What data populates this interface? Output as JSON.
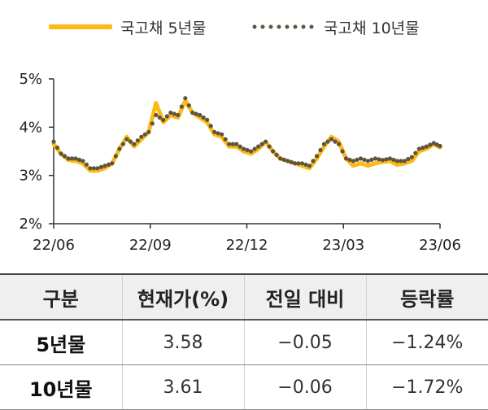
{
  "legend": {
    "series1": "국고채 5년물",
    "series2": "국고채 10년물"
  },
  "colors": {
    "series1": "#FDBA12",
    "series2": "#5E5440",
    "axis": "#333333",
    "header_bg": "#EFEFEF"
  },
  "chart_data": {
    "type": "line",
    "title": "",
    "xlabel": "",
    "ylabel": "",
    "ylim": [
      2,
      5
    ],
    "yticks": [
      "2%",
      "3%",
      "4%",
      "5%"
    ],
    "xticks": [
      "22/06",
      "22/09",
      "22/12",
      "23/03",
      "23/06"
    ],
    "xlim": [
      "2022-06-10",
      "2023-06-15"
    ],
    "grid": false,
    "legend_position": "top",
    "x": [
      "2022-06-10",
      "2022-06-17",
      "2022-06-24",
      "2022-07-01",
      "2022-07-08",
      "2022-07-15",
      "2022-07-22",
      "2022-07-29",
      "2022-08-05",
      "2022-08-12",
      "2022-08-19",
      "2022-08-26",
      "2022-09-02",
      "2022-09-09",
      "2022-09-16",
      "2022-09-23",
      "2022-09-30",
      "2022-10-07",
      "2022-10-14",
      "2022-10-21",
      "2022-10-28",
      "2022-11-04",
      "2022-11-11",
      "2022-11-18",
      "2022-11-25",
      "2022-12-02",
      "2022-12-09",
      "2022-12-16",
      "2022-12-23",
      "2022-12-30",
      "2023-01-06",
      "2023-01-13",
      "2023-01-20",
      "2023-01-27",
      "2023-02-03",
      "2023-02-10",
      "2023-02-17",
      "2023-02-24",
      "2023-03-03",
      "2023-03-10",
      "2023-03-17",
      "2023-03-24",
      "2023-03-31",
      "2023-04-07",
      "2023-04-14",
      "2023-04-21",
      "2023-04-28",
      "2023-05-05",
      "2023-05-12",
      "2023-05-19",
      "2023-05-26",
      "2023-06-02",
      "2023-06-09",
      "2023-06-15"
    ],
    "series": [
      {
        "name": "국고채 5년물",
        "values": [
          3.65,
          3.45,
          3.32,
          3.3,
          3.25,
          3.1,
          3.1,
          3.15,
          3.25,
          3.55,
          3.8,
          3.6,
          3.75,
          3.9,
          4.5,
          4.1,
          4.25,
          4.2,
          4.55,
          4.3,
          4.2,
          4.1,
          3.85,
          3.8,
          3.6,
          3.6,
          3.5,
          3.45,
          3.55,
          3.7,
          3.5,
          3.35,
          3.3,
          3.25,
          3.2,
          3.15,
          3.35,
          3.6,
          3.8,
          3.7,
          3.35,
          3.2,
          3.25,
          3.2,
          3.25,
          3.28,
          3.3,
          3.22,
          3.25,
          3.3,
          3.5,
          3.55,
          3.65,
          3.58
        ]
      },
      {
        "name": "국고채 10년물",
        "values": [
          3.7,
          3.45,
          3.35,
          3.35,
          3.3,
          3.15,
          3.15,
          3.2,
          3.25,
          3.55,
          3.75,
          3.65,
          3.8,
          3.9,
          4.25,
          4.15,
          4.3,
          4.25,
          4.6,
          4.3,
          4.25,
          4.15,
          3.9,
          3.85,
          3.65,
          3.65,
          3.55,
          3.5,
          3.6,
          3.7,
          3.5,
          3.35,
          3.3,
          3.25,
          3.25,
          3.2,
          3.4,
          3.65,
          3.75,
          3.65,
          3.35,
          3.3,
          3.35,
          3.3,
          3.35,
          3.32,
          3.35,
          3.3,
          3.3,
          3.38,
          3.55,
          3.6,
          3.67,
          3.61
        ]
      }
    ]
  },
  "table": {
    "headers": [
      "구분",
      "현재가(%)",
      "전일 대비",
      "등락률"
    ],
    "rows": [
      [
        "5년물",
        "3.58",
        "−0.05",
        "−1.24%"
      ],
      [
        "10년물",
        "3.61",
        "−0.06",
        "−1.72%"
      ]
    ]
  }
}
